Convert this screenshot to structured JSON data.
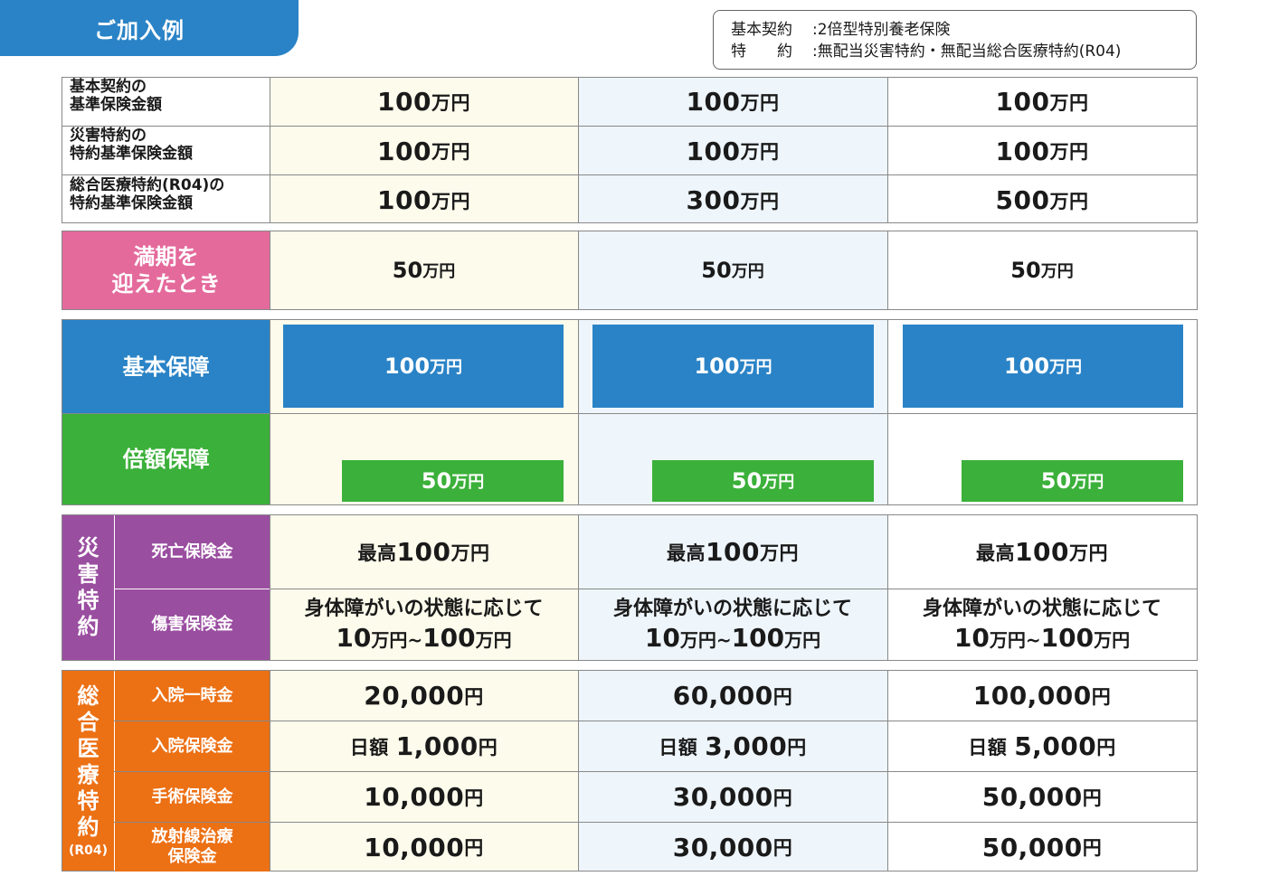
{
  "header": {
    "tab_label": "ご加入例",
    "contract": {
      "line1_key": "基本契約",
      "line1_val": ":2倍型特別養老保険",
      "line2_key": "特　　約",
      "line2_val": ":無配当災害特約・無配当総合医療特約(R04)"
    }
  },
  "amounts_table": {
    "rows": [
      {
        "label_l1": "基本契約の",
        "label_l2": "基準保険金額",
        "values": [
          "100",
          "100",
          "100"
        ],
        "unit": "万円"
      },
      {
        "label_l1": "災害特約の",
        "label_l2": "特約基準保険金額",
        "values": [
          "100",
          "100",
          "100"
        ],
        "unit": "万円"
      },
      {
        "label_l1": "総合医療特約(R04)の",
        "label_l2": "特約基準保険金額",
        "values": [
          "100",
          "300",
          "500"
        ],
        "unit": "万円"
      }
    ]
  },
  "maturity": {
    "label_l1": "満期を",
    "label_l2": "迎えたとき",
    "values": [
      "50",
      "50",
      "50"
    ],
    "unit": "万円"
  },
  "coverage": {
    "basic_label": "基本保障",
    "basic_values": [
      "100",
      "100",
      "100"
    ],
    "double_label": "倍額保障",
    "double_values": [
      "50",
      "50",
      "50"
    ],
    "unit": "万円",
    "colors": {
      "basic": "#2a83c6",
      "double": "#3bb03a"
    }
  },
  "disaster": {
    "group_label": [
      "災",
      "害",
      "特",
      "約"
    ],
    "death_label": "死亡保険金",
    "death_prefix": "最高",
    "death_values": [
      "100",
      "100",
      "100"
    ],
    "injury_label": "傷害保険金",
    "injury_line1": "身体障がいの状態に応じて",
    "injury_from": "10",
    "injury_tilde": "~",
    "injury_to": "100",
    "unit": "万円"
  },
  "medical": {
    "group_label": [
      "総",
      "合",
      "医",
      "療",
      "特",
      "約"
    ],
    "group_sub": "(R04)",
    "yen": "円",
    "daily_prefix": "日額",
    "rows": [
      {
        "label_l1": "入院一時金",
        "label_l2": "",
        "values": [
          "20,000",
          "60,000",
          "100,000"
        ],
        "daily": false
      },
      {
        "label_l1": "入院保険金",
        "label_l2": "",
        "values": [
          "1,000",
          "3,000",
          "5,000"
        ],
        "daily": true
      },
      {
        "label_l1": "手術保険金",
        "label_l2": "",
        "values": [
          "10,000",
          "30,000",
          "50,000"
        ],
        "daily": false
      },
      {
        "label_l1": "放射線治療",
        "label_l2": "保険金",
        "values": [
          "10,000",
          "30,000",
          "50,000"
        ],
        "daily": false
      }
    ]
  }
}
